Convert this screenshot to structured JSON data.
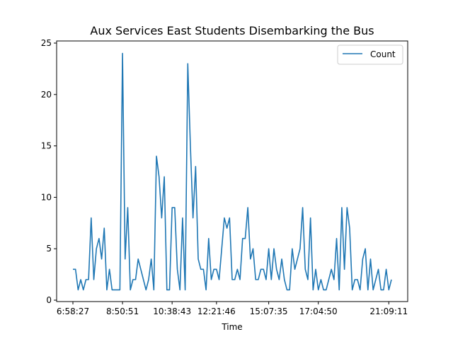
{
  "chart_data": {
    "type": "line",
    "title": "Aux Services East Students Disembarking the Bus",
    "xlabel": "Time",
    "ylabel": "",
    "x_tick_labels": [
      "6:58:27",
      "8:50:51",
      "10:38:43",
      "12:21:46",
      "15:07:35",
      "17:04:50",
      "21:09:11"
    ],
    "x_tick_index": [
      0,
      19,
      38,
      55,
      75,
      94,
      121
    ],
    "ylim": [
      0,
      25
    ],
    "y_ticks": [
      0,
      5,
      10,
      15,
      20,
      25
    ],
    "legend": {
      "placement": "top-right",
      "entries": [
        "Count"
      ]
    },
    "grid": false,
    "series": [
      {
        "name": "Count",
        "color": "#1f77b4",
        "values": [
          3,
          3,
          1,
          2,
          1,
          2,
          2,
          8,
          2,
          5,
          6,
          4,
          7,
          1,
          3,
          1,
          1,
          1,
          1,
          24,
          4,
          9,
          1,
          2,
          2,
          4,
          3,
          2,
          1,
          2,
          4,
          1,
          14,
          12,
          8,
          12,
          1,
          1,
          9,
          9,
          3,
          1,
          8,
          1,
          23,
          15,
          8,
          13,
          4,
          3,
          3,
          1,
          6,
          2,
          3,
          3,
          2,
          5,
          8,
          7,
          8,
          2,
          2,
          3,
          2,
          6,
          6,
          9,
          4,
          5,
          2,
          2,
          3,
          3,
          2,
          5,
          2,
          5,
          3,
          2,
          4,
          2,
          1,
          1,
          5,
          3,
          4,
          5,
          9,
          3,
          2,
          8,
          1,
          3,
          1,
          2,
          1,
          1,
          2,
          3,
          2,
          6,
          1,
          9,
          3,
          9,
          7,
          1,
          2,
          2,
          1,
          4,
          5,
          1,
          4,
          1,
          2,
          3,
          1,
          1,
          3,
          1,
          2
        ]
      }
    ]
  }
}
